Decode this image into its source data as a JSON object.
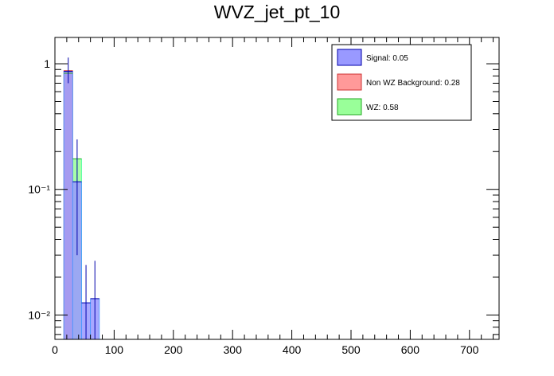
{
  "chart_data": {
    "type": "bar",
    "title": "WVZ_jet_pt_10",
    "xlabel": "",
    "ylabel": "",
    "xlim": [
      0,
      750
    ],
    "ylim": [
      0.0064,
      1.62
    ],
    "yscale": "log",
    "bin_width": 15,
    "x_ticks": [
      0,
      100,
      200,
      300,
      400,
      500,
      600,
      700
    ],
    "y_ticks": [
      {
        "value": 1,
        "label": "1"
      },
      {
        "value": 0.1,
        "label": "10⁻¹"
      },
      {
        "value": 0.01,
        "label": "10⁻²"
      }
    ],
    "legend_position": "top-right",
    "series": [
      {
        "name": "WZ: 0.58",
        "color": "#99ff99",
        "bins": [
          {
            "x0": 15,
            "x1": 30,
            "y": 0.84
          },
          {
            "x0": 30,
            "x1": 45,
            "y": 0.175
          }
        ]
      },
      {
        "name": "Non WZ Background: 0.28",
        "color": "#ff9999",
        "bins": [
          {
            "x0": 15,
            "x1": 30,
            "y": 0.88
          }
        ]
      },
      {
        "name": "Signal: 0.05",
        "color": "#9999ff",
        "bins": [
          {
            "x0": 15,
            "x1": 30,
            "y": 0.87,
            "err_lo": 0.7,
            "err_hi": 1.12
          },
          {
            "x0": 30,
            "x1": 45,
            "y": 0.115,
            "err_lo": 0.03,
            "err_hi": 0.25
          },
          {
            "x0": 45,
            "x1": 60,
            "y": 0.0125,
            "err_lo": 0.0064,
            "err_hi": 0.025
          },
          {
            "x0": 60,
            "x1": 75,
            "y": 0.0135,
            "err_lo": 0.0064,
            "err_hi": 0.027
          }
        ]
      }
    ]
  }
}
